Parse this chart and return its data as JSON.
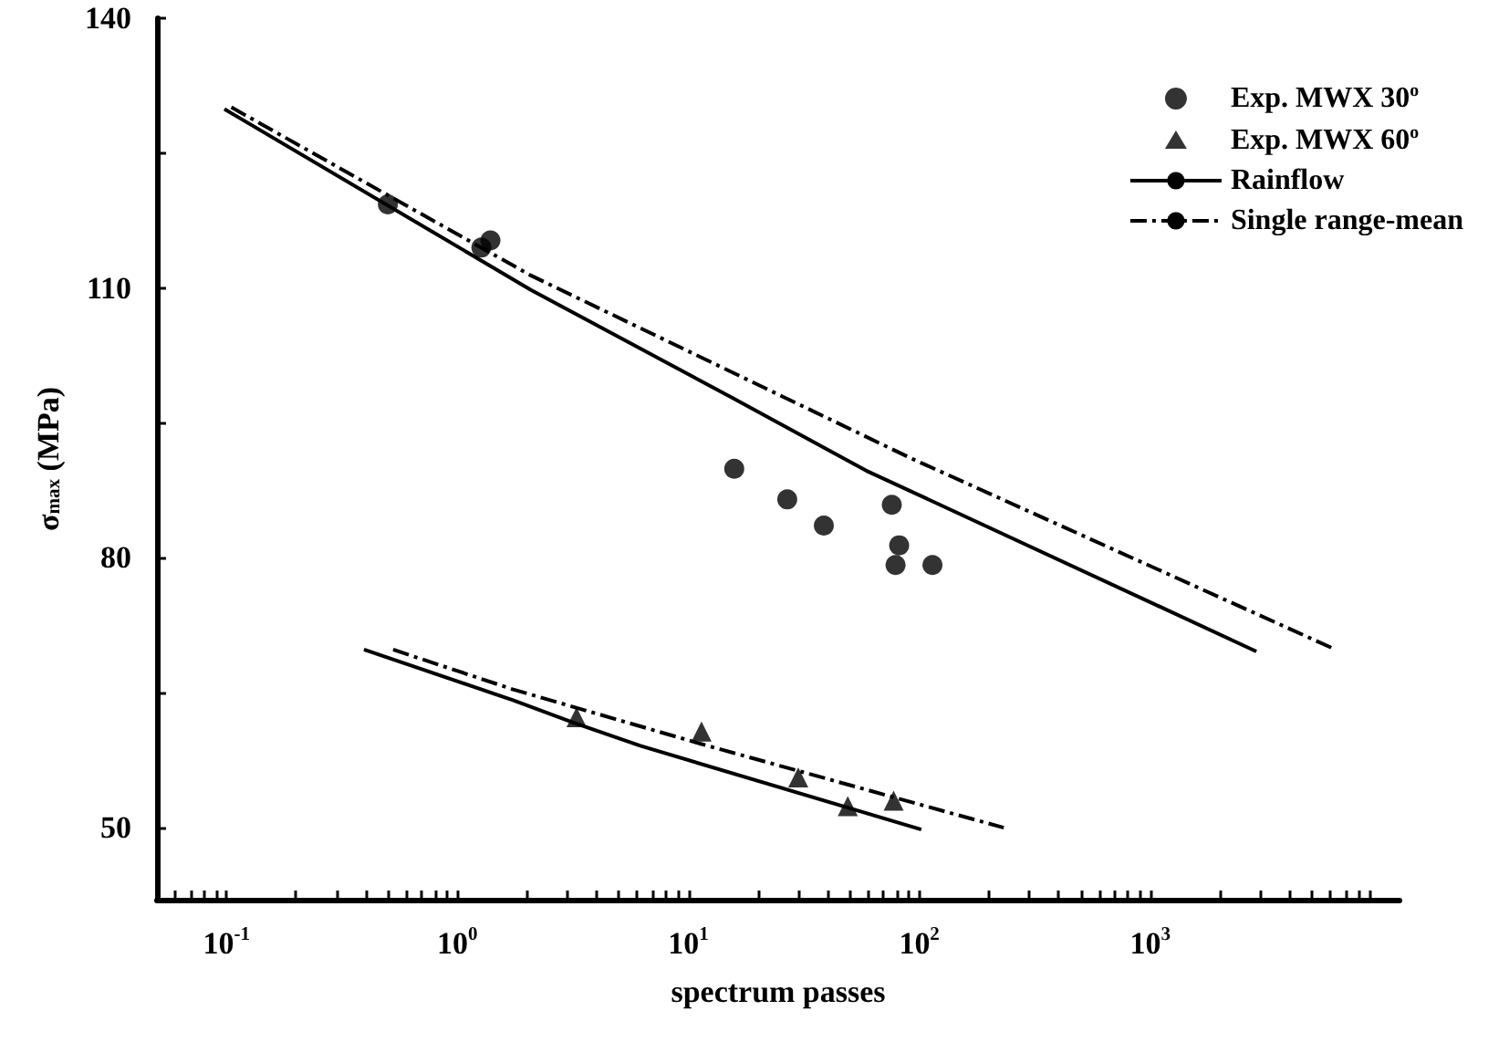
{
  "chart_data": {
    "type": "scatter",
    "xlabel": "spectrum passes",
    "ylabel": "σ$_{max}$ (MPa)",
    "log": "x",
    "xlim": [
      0.05,
      12000
    ],
    "ylim": [
      42,
      140
    ],
    "xticks": [
      {
        "value": 0.06,
        "label": null
      },
      {
        "value": 0.07,
        "label": null
      },
      {
        "value": 0.08,
        "label": null
      },
      {
        "value": 0.09,
        "label": null
      },
      {
        "value": 0.1,
        "label": "10$^{-1}$"
      },
      {
        "value": 0.2,
        "label": null
      },
      {
        "value": 0.3,
        "label": null
      },
      {
        "value": 0.4,
        "label": null
      },
      {
        "value": 0.5,
        "label": null
      },
      {
        "value": 0.6,
        "label": null
      },
      {
        "value": 0.7,
        "label": null
      },
      {
        "value": 0.8,
        "label": null
      },
      {
        "value": 0.9,
        "label": null
      },
      {
        "value": 1,
        "label": "10$^{0}$"
      },
      {
        "value": 2,
        "label": null
      },
      {
        "value": 3,
        "label": null
      },
      {
        "value": 4,
        "label": null
      },
      {
        "value": 5,
        "label": null
      },
      {
        "value": 6,
        "label": null
      },
      {
        "value": 7,
        "label": null
      },
      {
        "value": 8,
        "label": null
      },
      {
        "value": 9,
        "label": null
      },
      {
        "value": 10,
        "label": "10$^{1}$"
      },
      {
        "value": 20,
        "label": null
      },
      {
        "value": 30,
        "label": null
      },
      {
        "value": 40,
        "label": null
      },
      {
        "value": 50,
        "label": null
      },
      {
        "value": 60,
        "label": null
      },
      {
        "value": 70,
        "label": null
      },
      {
        "value": 80,
        "label": null
      },
      {
        "value": 90,
        "label": null
      },
      {
        "value": 100,
        "label": "10$^{2}$"
      },
      {
        "value": 200,
        "label": null
      },
      {
        "value": 300,
        "label": null
      },
      {
        "value": 400,
        "label": null
      },
      {
        "value": 500,
        "label": null
      },
      {
        "value": 600,
        "label": null
      },
      {
        "value": 700,
        "label": null
      },
      {
        "value": 800,
        "label": null
      },
      {
        "value": 900,
        "label": null
      },
      {
        "value": 1000,
        "label": "10$^{3}$"
      },
      {
        "value": 2000,
        "label": null
      },
      {
        "value": 3000,
        "label": null
      },
      {
        "value": 4000,
        "label": null
      },
      {
        "value": 5000,
        "label": null
      },
      {
        "value": 6000,
        "label": null
      },
      {
        "value": 7000,
        "label": null
      },
      {
        "value": 8000,
        "label": null
      },
      {
        "value": 9000,
        "label": null
      }
    ],
    "yticks": [
      50,
      {
        "value": 65,
        "label": null
      },
      80,
      {
        "value": 95,
        "label": null
      },
      110,
      {
        "value": 125,
        "label": null
      },
      140
    ],
    "grid": false,
    "legend": "top right",
    "series": [
      {
        "name": "Exp. MWX 30$^{o}$",
        "marker": "circle",
        "color": "#000000",
        "x": [
          0.5,
          1.27,
          1.39,
          15.8,
          26.8,
          38.6,
          76,
          81.8,
          78.9,
          114
        ],
        "values": [
          119.3,
          114.5,
          115.3,
          89.9,
          86.5,
          83.6,
          85.9,
          81.4,
          79.2,
          79.2
        ]
      },
      {
        "name": "Exp. MWX 60$^{o}$",
        "marker": "triangle",
        "color": "#000000",
        "x": [
          3.28,
          11.4,
          29.9,
          49,
          77.4
        ],
        "values": [
          62.3,
          60.7,
          55.6,
          52.4,
          53.0
        ]
      },
      {
        "name": "Rainflow",
        "type": "line",
        "marker": "none",
        "line_style": "solid",
        "color": "#000000",
        "x": [
          0.098,
          2.08,
          15.5,
          58.9,
          2880,
          null,
          0.394,
          1.73,
          3.17,
          6.2,
          102
        ],
        "values": [
          129.9,
          109.8,
          97.8,
          89.7,
          69.6,
          null,
          69.8,
          64.2,
          61.7,
          59.1,
          49.8
        ]
      },
      {
        "name": "Single range-mean",
        "type": "line",
        "marker": "none",
        "line_style": "dashdot",
        "color": "#000000",
        "x": [
          0.105,
          2.08,
          91.6,
          6110,
          null,
          0.527,
          1.73,
          11.4,
          232
        ],
        "values": [
          130.1,
          111.4,
          91.1,
          70.0,
          null,
          69.8,
          65.4,
          59.3,
          50.0
        ]
      }
    ]
  }
}
